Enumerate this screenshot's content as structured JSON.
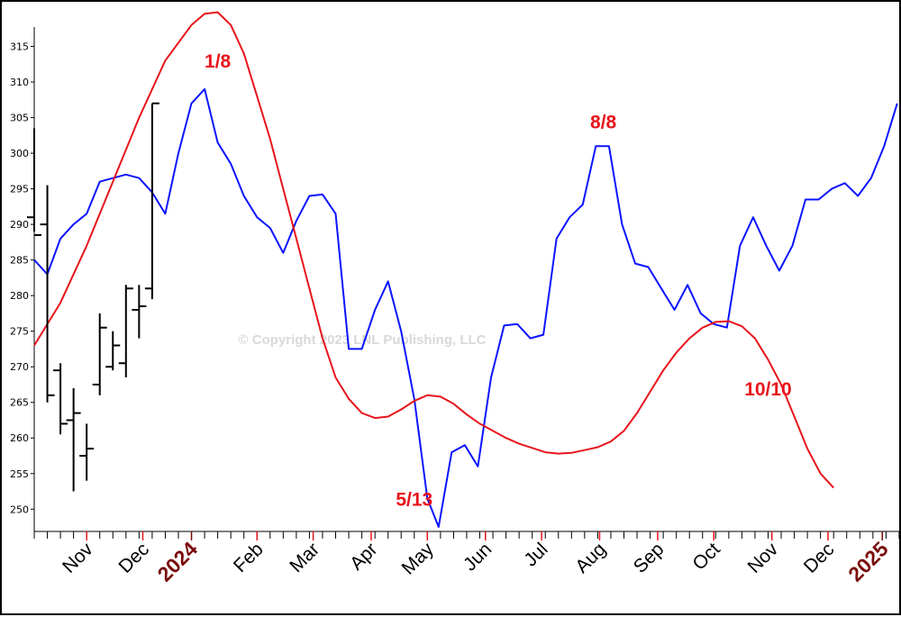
{
  "chart_data": {
    "type": "line",
    "title": "",
    "watermark": "© Copyright 2023 LNL Publishing, LLC",
    "ylim": [
      247,
      320
    ],
    "y_ticks": [
      250,
      255,
      260,
      265,
      270,
      275,
      280,
      285,
      290,
      295,
      300,
      305,
      310,
      315
    ],
    "x_domain": [
      "2023-10-10",
      "2025-01-15"
    ],
    "x_labels": [
      {
        "label": "Nov",
        "date": "2023-11-07",
        "year": false
      },
      {
        "label": "Dec",
        "date": "2023-12-07",
        "year": false
      },
      {
        "label": "2024",
        "date": "2024-01-02",
        "year": true
      },
      {
        "label": "Feb",
        "date": "2024-02-06",
        "year": false
      },
      {
        "label": "Mar",
        "date": "2024-03-07",
        "year": false
      },
      {
        "label": "Apr",
        "date": "2024-04-07",
        "year": false
      },
      {
        "label": "May",
        "date": "2024-05-07",
        "year": false
      },
      {
        "label": "Jun",
        "date": "2024-06-07",
        "year": false
      },
      {
        "label": "Jul",
        "date": "2024-07-07",
        "year": false
      },
      {
        "label": "Aug",
        "date": "2024-08-07",
        "year": false
      },
      {
        "label": "Sep",
        "date": "2024-09-07",
        "year": false
      },
      {
        "label": "Oct",
        "date": "2024-10-07",
        "year": false
      },
      {
        "label": "Nov",
        "date": "2024-11-07",
        "year": false
      },
      {
        "label": "Dec",
        "date": "2024-12-07",
        "year": false
      },
      {
        "label": "2025",
        "date": "2025-01-05",
        "year": true
      }
    ],
    "series": [
      {
        "color": "#0a14ff",
        "points": [
          [
            "2023-10-10",
            285.0
          ],
          [
            "2023-10-17",
            283.0
          ],
          [
            "2023-10-24",
            288.0
          ],
          [
            "2023-10-31",
            290.0
          ],
          [
            "2023-11-07",
            291.5
          ],
          [
            "2023-11-14",
            296.0
          ],
          [
            "2023-11-21",
            296.5
          ],
          [
            "2023-11-28",
            297.0
          ],
          [
            "2023-12-05",
            296.5
          ],
          [
            "2023-12-12",
            294.5
          ],
          [
            "2023-12-19",
            291.5
          ],
          [
            "2023-12-26",
            300.0
          ],
          [
            "2024-01-02",
            307.0
          ],
          [
            "2024-01-09",
            309.0
          ],
          [
            "2024-01-16",
            301.5
          ],
          [
            "2024-01-23",
            298.5
          ],
          [
            "2024-01-30",
            294.0
          ],
          [
            "2024-02-06",
            291.0
          ],
          [
            "2024-02-13",
            289.5
          ],
          [
            "2024-02-20",
            286.0
          ],
          [
            "2024-02-27",
            290.5
          ],
          [
            "2024-03-05",
            294.0
          ],
          [
            "2024-03-12",
            294.2
          ],
          [
            "2024-03-19",
            291.5
          ],
          [
            "2024-03-26",
            272.5
          ],
          [
            "2024-04-02",
            272.5
          ],
          [
            "2024-04-09",
            278.0
          ],
          [
            "2024-04-16",
            282.0
          ],
          [
            "2024-04-23",
            275.0
          ],
          [
            "2024-04-30",
            265.5
          ],
          [
            "2024-05-07",
            251.5
          ],
          [
            "2024-05-13",
            247.5
          ],
          [
            "2024-05-20",
            258.0
          ],
          [
            "2024-05-27",
            259.0
          ],
          [
            "2024-06-03",
            256.0
          ],
          [
            "2024-06-10",
            268.5
          ],
          [
            "2024-06-17",
            275.8
          ],
          [
            "2024-06-24",
            276.0
          ],
          [
            "2024-07-01",
            274.0
          ],
          [
            "2024-07-08",
            274.5
          ],
          [
            "2024-07-15",
            288.0
          ],
          [
            "2024-07-22",
            291.0
          ],
          [
            "2024-07-29",
            292.8
          ],
          [
            "2024-08-05",
            301.0
          ],
          [
            "2024-08-12",
            301.0
          ],
          [
            "2024-08-19",
            290.0
          ],
          [
            "2024-08-26",
            284.5
          ],
          [
            "2024-09-02",
            284.0
          ],
          [
            "2024-09-09",
            281.0
          ],
          [
            "2024-09-16",
            278.0
          ],
          [
            "2024-09-23",
            281.5
          ],
          [
            "2024-09-30",
            277.5
          ],
          [
            "2024-10-07",
            276.0
          ],
          [
            "2024-10-14",
            275.5
          ],
          [
            "2024-10-21",
            287.0
          ],
          [
            "2024-10-28",
            291.0
          ],
          [
            "2024-11-04",
            287.0
          ],
          [
            "2024-11-11",
            283.5
          ],
          [
            "2024-11-18",
            287.0
          ],
          [
            "2024-11-25",
            293.5
          ],
          [
            "2024-12-02",
            293.5
          ],
          [
            "2024-12-09",
            295.0
          ],
          [
            "2024-12-16",
            295.8
          ],
          [
            "2024-12-23",
            294.0
          ],
          [
            "2024-12-30",
            296.5
          ],
          [
            "2025-01-06",
            301.0
          ],
          [
            "2025-01-13",
            307.0
          ]
        ]
      },
      {
        "color": "#e8141b",
        "points": [
          [
            "2023-10-10",
            273.0
          ],
          [
            "2023-10-24",
            279.0
          ],
          [
            "2023-11-07",
            287.0
          ],
          [
            "2023-11-21",
            296.0
          ],
          [
            "2023-12-05",
            305.0
          ],
          [
            "2023-12-19",
            313.0
          ],
          [
            "2024-01-02",
            318.0
          ],
          [
            "2024-01-09",
            319.6
          ],
          [
            "2024-01-16",
            319.8
          ],
          [
            "2024-01-23",
            318.0
          ],
          [
            "2024-01-30",
            314.0
          ],
          [
            "2024-02-06",
            308.0
          ],
          [
            "2024-02-13",
            302.0
          ],
          [
            "2024-02-20",
            295.0
          ],
          [
            "2024-02-27",
            288.0
          ],
          [
            "2024-03-05",
            281.0
          ],
          [
            "2024-03-12",
            274.0
          ],
          [
            "2024-03-19",
            268.5
          ],
          [
            "2024-03-26",
            265.5
          ],
          [
            "2024-04-02",
            263.5
          ],
          [
            "2024-04-09",
            262.8
          ],
          [
            "2024-04-16",
            263.0
          ],
          [
            "2024-04-23",
            264.0
          ],
          [
            "2024-04-30",
            265.2
          ],
          [
            "2024-05-07",
            266.0
          ],
          [
            "2024-05-14",
            265.8
          ],
          [
            "2024-05-21",
            264.8
          ],
          [
            "2024-05-28",
            263.3
          ],
          [
            "2024-06-04",
            262.0
          ],
          [
            "2024-06-11",
            261.0
          ],
          [
            "2024-06-18",
            260.0
          ],
          [
            "2024-06-25",
            259.2
          ],
          [
            "2024-07-02",
            258.6
          ],
          [
            "2024-07-09",
            258.0
          ],
          [
            "2024-07-16",
            257.8
          ],
          [
            "2024-07-23",
            257.9
          ],
          [
            "2024-07-30",
            258.3
          ],
          [
            "2024-08-06",
            258.7
          ],
          [
            "2024-08-13",
            259.5
          ],
          [
            "2024-08-20",
            261.0
          ],
          [
            "2024-08-27",
            263.5
          ],
          [
            "2024-09-03",
            266.5
          ],
          [
            "2024-09-10",
            269.5
          ],
          [
            "2024-09-17",
            272.0
          ],
          [
            "2024-09-24",
            274.0
          ],
          [
            "2024-10-01",
            275.5
          ],
          [
            "2024-10-08",
            276.3
          ],
          [
            "2024-10-15",
            276.4
          ],
          [
            "2024-10-22",
            275.7
          ],
          [
            "2024-10-29",
            274.0
          ],
          [
            "2024-11-05",
            271.0
          ],
          [
            "2024-11-12",
            267.5
          ],
          [
            "2024-11-19",
            263.0
          ],
          [
            "2024-11-26",
            258.5
          ],
          [
            "2024-12-03",
            255.0
          ],
          [
            "2024-12-10",
            253.0
          ]
        ]
      }
    ],
    "ohlc_bars": [
      {
        "date": "2023-10-10",
        "high": 303.5,
        "low": 289.0,
        "open": 291.0,
        "close": 288.5
      },
      {
        "date": "2023-10-17",
        "high": 295.5,
        "low": 265.0,
        "open": 290.0,
        "close": 266.0
      },
      {
        "date": "2023-10-24",
        "high": 270.5,
        "low": 260.5,
        "open": 269.5,
        "close": 262.0
      },
      {
        "date": "2023-10-31",
        "high": 267.0,
        "low": 252.5,
        "open": 262.5,
        "close": 263.5
      },
      {
        "date": "2023-11-07",
        "high": 262.0,
        "low": 254.0,
        "open": 257.5,
        "close": 258.5
      },
      {
        "date": "2023-11-14",
        "high": 277.5,
        "low": 266.0,
        "open": 267.5,
        "close": 275.5
      },
      {
        "date": "2023-11-21",
        "high": 275.0,
        "low": 269.5,
        "open": 270.0,
        "close": 273.0
      },
      {
        "date": "2023-11-28",
        "high": 281.5,
        "low": 268.5,
        "open": 270.5,
        "close": 281.0
      },
      {
        "date": "2023-12-05",
        "high": 281.5,
        "low": 274.0,
        "open": 278.0,
        "close": 278.5
      },
      {
        "date": "2023-12-12",
        "high": 307.0,
        "low": 279.5,
        "open": 281.0,
        "close": 307.0
      }
    ],
    "annotations": [
      {
        "text": "1/8",
        "date": "2024-01-16",
        "y": 312.0
      },
      {
        "text": "8/8",
        "date": "2024-08-09",
        "y": 303.5
      },
      {
        "text": "5/13",
        "date": "2024-04-30",
        "y": 250.5
      },
      {
        "text": "10/10",
        "date": "2024-11-05",
        "y": 266.0
      }
    ],
    "grid": false
  }
}
